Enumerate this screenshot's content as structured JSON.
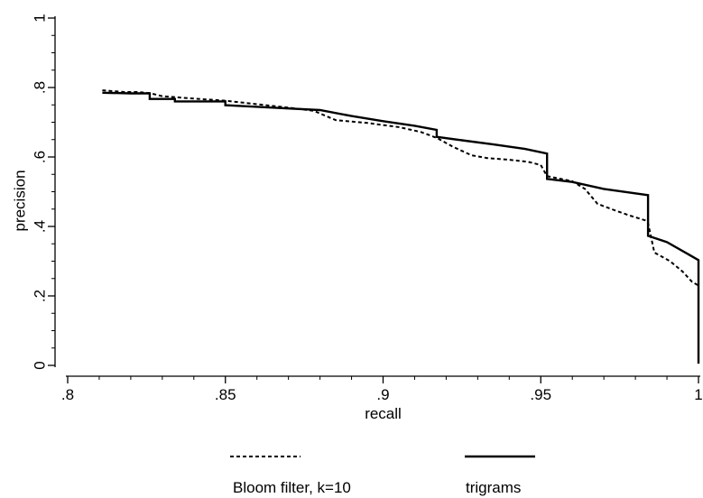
{
  "chart_data": {
    "type": "line",
    "title": "",
    "xlabel": "recall",
    "ylabel": "precision",
    "xlim": [
      0.8,
      1.0
    ],
    "ylim": [
      0,
      1.0
    ],
    "x_ticks": [
      0.8,
      0.85,
      0.9,
      0.95,
      1.0
    ],
    "x_tick_labels": [
      ".8",
      ".85",
      ".9",
      ".95",
      "1"
    ],
    "y_ticks": [
      0,
      0.2,
      0.4,
      0.6,
      0.8,
      1.0
    ],
    "y_tick_labels": [
      "0",
      ".2",
      ".4",
      ".6",
      ".8",
      "1"
    ],
    "grid": false,
    "legend_position": "bottom",
    "series": [
      {
        "name": "Bloom filter, k=10",
        "line_style": "dashed",
        "color": "#000000",
        "points": [
          [
            0.811,
            0.792
          ],
          [
            0.818,
            0.787
          ],
          [
            0.822,
            0.787
          ],
          [
            0.826,
            0.784
          ],
          [
            0.83,
            0.775
          ],
          [
            0.84,
            0.768
          ],
          [
            0.85,
            0.762
          ],
          [
            0.86,
            0.752
          ],
          [
            0.87,
            0.742
          ],
          [
            0.878,
            0.733
          ],
          [
            0.885,
            0.706
          ],
          [
            0.895,
            0.698
          ],
          [
            0.905,
            0.686
          ],
          [
            0.912,
            0.672
          ],
          [
            0.917,
            0.655
          ],
          [
            0.922,
            0.63
          ],
          [
            0.928,
            0.605
          ],
          [
            0.933,
            0.597
          ],
          [
            0.94,
            0.592
          ],
          [
            0.946,
            0.586
          ],
          [
            0.95,
            0.577
          ],
          [
            0.952,
            0.545
          ],
          [
            0.96,
            0.53
          ],
          [
            0.964,
            0.508
          ],
          [
            0.968,
            0.465
          ],
          [
            0.973,
            0.448
          ],
          [
            0.978,
            0.432
          ],
          [
            0.983,
            0.418
          ],
          [
            0.984,
            0.41
          ],
          [
            0.986,
            0.325
          ],
          [
            0.991,
            0.3
          ],
          [
            0.995,
            0.27
          ],
          [
            0.998,
            0.24
          ],
          [
            1.0,
            0.23
          ]
        ]
      },
      {
        "name": "trigrams",
        "line_style": "solid",
        "color": "#000000",
        "points": [
          [
            0.811,
            0.785
          ],
          [
            0.82,
            0.783
          ],
          [
            0.826,
            0.783
          ],
          [
            0.826,
            0.767
          ],
          [
            0.834,
            0.767
          ],
          [
            0.834,
            0.76
          ],
          [
            0.85,
            0.76
          ],
          [
            0.85,
            0.749
          ],
          [
            0.865,
            0.742
          ],
          [
            0.88,
            0.735
          ],
          [
            0.89,
            0.718
          ],
          [
            0.9,
            0.703
          ],
          [
            0.91,
            0.69
          ],
          [
            0.917,
            0.678
          ],
          [
            0.917,
            0.658
          ],
          [
            0.925,
            0.648
          ],
          [
            0.935,
            0.636
          ],
          [
            0.945,
            0.623
          ],
          [
            0.952,
            0.61
          ],
          [
            0.952,
            0.537
          ],
          [
            0.96,
            0.528
          ],
          [
            0.97,
            0.508
          ],
          [
            0.984,
            0.49
          ],
          [
            0.984,
            0.373
          ],
          [
            0.99,
            0.355
          ],
          [
            1.0,
            0.303
          ],
          [
            1.0,
            0.005
          ]
        ]
      }
    ]
  }
}
